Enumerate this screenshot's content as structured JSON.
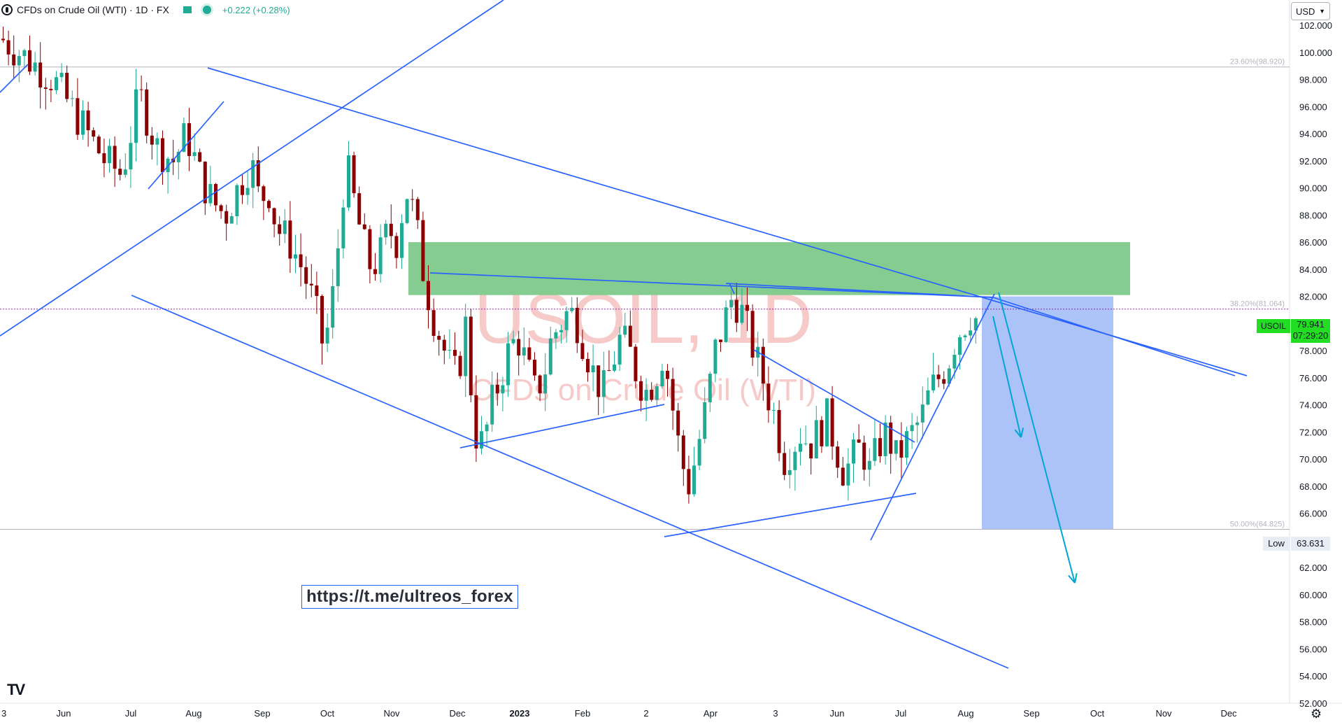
{
  "header": {
    "symbol_desc": "CFDs on Crude Oil (WTI) · 1D · FX",
    "change": "+0.222 (+0.28%)"
  },
  "currency": "USD",
  "watermark": {
    "symbol": "USOIL, 1D",
    "desc": "CFDs on Crude Oil (WTI)"
  },
  "last_price": {
    "symbol": "USOIL",
    "value": "79.941",
    "countdown": "07:29:20"
  },
  "low_marker": {
    "label": "Low",
    "value": "63.631"
  },
  "link_text": "https://t.me/ultreos_forex",
  "colors": {
    "up": "#22ab94",
    "down": "#8b0000",
    "trendline": "#2962ff",
    "resistance_zone": "#7ec98a",
    "target_zone": "#a7c0f5",
    "arrow": "#00a7d4"
  },
  "chart_data": {
    "type": "candlestick",
    "y_axis": {
      "min": 52,
      "max": 102,
      "step": 2,
      "tick_labels": [
        "102.000",
        "100.000",
        "98.000",
        "96.000",
        "94.000",
        "92.000",
        "90.000",
        "88.000",
        "86.000",
        "84.000",
        "82.000",
        "80.000",
        "78.000",
        "76.000",
        "74.000",
        "72.000",
        "70.000",
        "68.000",
        "66.000",
        "64.000",
        "62.000",
        "60.000",
        "58.000",
        "56.000",
        "54.000",
        "52.000"
      ]
    },
    "x_axis_labels": [
      "3",
      "Jun",
      "Jul",
      "Aug",
      "Sep",
      "Oct",
      "Nov",
      "Dec",
      "2023",
      "Feb",
      "2",
      "Apr",
      "3",
      "Jun",
      "Jul",
      "Aug",
      "Sep",
      "Oct",
      "Nov",
      "Dec"
    ],
    "fib_levels": [
      {
        "label": "23.60%(98.920)",
        "price": 98.92
      },
      {
        "label": "38.20%(81.064)",
        "price": 81.064
      },
      {
        "label": "50.00%(64.825)",
        "price": 64.825
      }
    ],
    "resistance_zone": {
      "from": 82.1,
      "to": 86.0
    },
    "target_zone": {
      "from": 64.8,
      "to": 82.0
    },
    "approx_daily_closes": [
      [
        0,
        101
      ],
      [
        20,
        100
      ],
      [
        40,
        99
      ],
      [
        60,
        98
      ],
      [
        80,
        96
      ],
      [
        100,
        94
      ],
      [
        120,
        92
      ],
      [
        140,
        91
      ],
      [
        160,
        97
      ],
      [
        180,
        93
      ],
      [
        200,
        92
      ],
      [
        215,
        94
      ],
      [
        230,
        91
      ],
      [
        245,
        89
      ],
      [
        260,
        88
      ],
      [
        275,
        90
      ],
      [
        290,
        92
      ],
      [
        300,
        89
      ],
      [
        310,
        90
      ],
      [
        320,
        87
      ],
      [
        335,
        86
      ],
      [
        350,
        84
      ],
      [
        365,
        81
      ],
      [
        375,
        78
      ],
      [
        385,
        82
      ],
      [
        395,
        88
      ],
      [
        400,
        92
      ],
      [
        410,
        89
      ],
      [
        420,
        86
      ],
      [
        430,
        84
      ],
      [
        440,
        85
      ],
      [
        450,
        87
      ],
      [
        460,
        86
      ],
      [
        470,
        90
      ],
      [
        480,
        88
      ],
      [
        490,
        84
      ],
      [
        500,
        81
      ],
      [
        510,
        79
      ],
      [
        520,
        77
      ],
      [
        530,
        76
      ],
      [
        540,
        80
      ],
      [
        550,
        72
      ],
      [
        560,
        71
      ],
      [
        570,
        74
      ],
      [
        580,
        76
      ],
      [
        590,
        78
      ],
      [
        600,
        79
      ],
      [
        610,
        77
      ],
      [
        620,
        75
      ],
      [
        630,
        76
      ],
      [
        640,
        79
      ],
      [
        650,
        80
      ],
      [
        660,
        81
      ],
      [
        670,
        80
      ],
      [
        680,
        78
      ],
      [
        690,
        76
      ],
      [
        700,
        75
      ],
      [
        710,
        77
      ],
      [
        720,
        79
      ],
      [
        730,
        78
      ],
      [
        740,
        76
      ],
      [
        750,
        75
      ],
      [
        760,
        76
      ],
      [
        770,
        78
      ],
      [
        780,
        74
      ],
      [
        790,
        70
      ],
      [
        800,
        68
      ],
      [
        810,
        71
      ],
      [
        820,
        74
      ],
      [
        830,
        78
      ],
      [
        840,
        80
      ],
      [
        850,
        82
      ],
      [
        860,
        81
      ],
      [
        870,
        79
      ],
      [
        880,
        77
      ],
      [
        890,
        75
      ],
      [
        900,
        73
      ],
      [
        910,
        70
      ],
      [
        920,
        71
      ],
      [
        930,
        72
      ],
      [
        940,
        71
      ],
      [
        950,
        72
      ],
      [
        960,
        73
      ],
      [
        970,
        71
      ],
      [
        980,
        69
      ],
      [
        990,
        70
      ],
      [
        1000,
        71
      ],
      [
        1010,
        69
      ],
      [
        1020,
        71
      ],
      [
        1030,
        72
      ],
      [
        1040,
        70
      ],
      [
        1050,
        71
      ],
      [
        1060,
        72
      ],
      [
        1070,
        73
      ],
      [
        1080,
        75
      ],
      [
        1090,
        76
      ],
      [
        1100,
        77
      ],
      [
        1110,
        79
      ],
      [
        1120,
        80
      ],
      [
        1130,
        81
      ],
      [
        1135,
        80
      ]
    ]
  }
}
